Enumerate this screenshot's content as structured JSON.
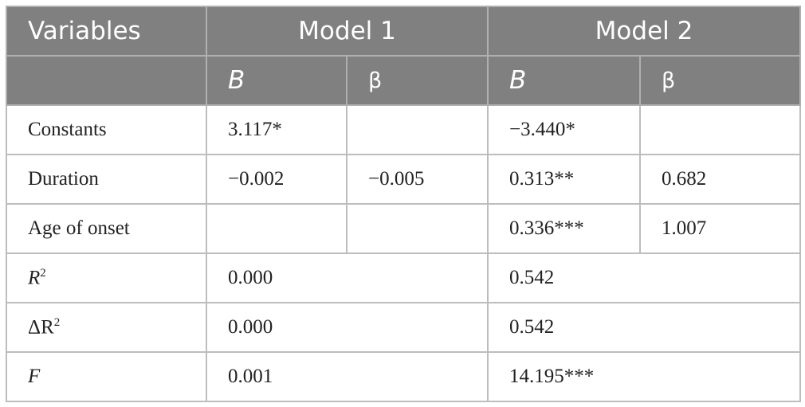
{
  "table": {
    "header": {
      "variables": "Variables",
      "models": [
        "Model 1",
        "Model 2"
      ],
      "sub": [
        "B",
        "β",
        "B",
        "β"
      ]
    },
    "rows": [
      {
        "label": "Constants",
        "m1_B": "3.117*",
        "m2_B": "−3.440*"
      },
      {
        "label": "Duration",
        "m1_B": "−0.002",
        "m1_beta": "−0.005",
        "m2_B": "0.313**",
        "m2_beta": "0.682"
      },
      {
        "label": "Age of onset",
        "m2_B": "0.336***",
        "m2_beta": "1.007"
      }
    ],
    "summary": [
      {
        "label": "R",
        "label_sup": "2",
        "model1": "0.000",
        "model2": "0.542"
      },
      {
        "label": "ΔR",
        "label_sup": "2",
        "model1": "0.000",
        "model2": "0.542"
      },
      {
        "label": "F",
        "model1": "0.001",
        "model2": "14.195***"
      }
    ]
  }
}
